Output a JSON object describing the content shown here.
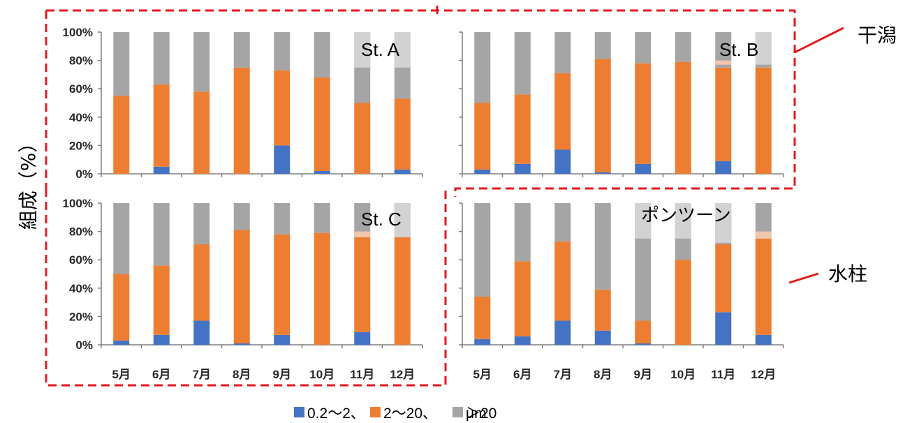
{
  "ylabel": "組成（%）",
  "legend_text": "0.2～2、 2～20、 ＞20 μm",
  "side_labels": {
    "upper": "干潟",
    "lower": "水柱"
  },
  "colors": {
    "small": "#4472c4",
    "medium": "#ed7d31",
    "large": "#a5a5a5",
    "light_orange": "#f8cbad",
    "light_gray": "#d9d9d9",
    "dashed": "#e31a1c",
    "axis": "#7f7f7f"
  },
  "chart_data": [
    {
      "type": "bar",
      "title": "St. A",
      "categories": [
        "5月",
        "6月",
        "7月",
        "8月",
        "9月",
        "10月",
        "11月",
        "12月"
      ],
      "series": [
        {
          "name": "0.2～2",
          "values": [
            0,
            5,
            0,
            0,
            20,
            2,
            0,
            3
          ]
        },
        {
          "name": "2～20",
          "values": [
            55,
            58,
            58,
            75,
            53,
            66,
            50,
            50
          ]
        },
        {
          "name": "＞20 μm",
          "values": [
            45,
            37,
            42,
            25,
            27,
            32,
            50,
            47
          ]
        }
      ],
      "ylim": [
        0,
        100
      ],
      "yticks": [
        "0%",
        "20%",
        "40%",
        "60%",
        "80%",
        "100%"
      ]
    },
    {
      "type": "bar",
      "title": "St. B",
      "categories": [
        "5月",
        "6月",
        "7月",
        "8月",
        "9月",
        "10月",
        "11月",
        "12月"
      ],
      "series": [
        {
          "name": "0.2～2",
          "values": [
            3,
            7,
            17,
            1,
            7,
            0,
            9,
            0
          ]
        },
        {
          "name": "2～20",
          "values": [
            47,
            49,
            54,
            80,
            71,
            79,
            66,
            75
          ]
        },
        {
          "name": "＞20 μm",
          "values": [
            50,
            44,
            29,
            19,
            22,
            21,
            25,
            25
          ]
        }
      ],
      "ylim": [
        0,
        100
      ],
      "yticks": [
        "0%",
        "20%",
        "40%",
        "60%",
        "80%",
        "100%"
      ]
    },
    {
      "type": "bar",
      "title": "St. C",
      "categories": [
        "5月",
        "6月",
        "7月",
        "8月",
        "9月",
        "10月",
        "11月",
        "12月"
      ],
      "series": [
        {
          "name": "0.2～2",
          "values": [
            3,
            7,
            17,
            1,
            7,
            0,
            9,
            0
          ]
        },
        {
          "name": "2～20",
          "values": [
            47,
            49,
            54,
            80,
            71,
            79,
            67,
            76
          ]
        },
        {
          "name": "＞20 μm",
          "values": [
            50,
            44,
            29,
            19,
            22,
            21,
            24,
            24
          ]
        }
      ],
      "ylim": [
        0,
        100
      ],
      "yticks": [
        "0%",
        "20%",
        "40%",
        "60%",
        "80%",
        "100%"
      ]
    },
    {
      "type": "bar",
      "title": "ポンツーン",
      "categories": [
        "5月",
        "6月",
        "7月",
        "8月",
        "9月",
        "10月",
        "11月",
        "12月"
      ],
      "series": [
        {
          "name": "0.2～2",
          "values": [
            4,
            6,
            17,
            10,
            1,
            0,
            23,
            7
          ]
        },
        {
          "name": "2～20",
          "values": [
            30,
            53,
            56,
            29,
            16,
            60,
            48,
            68
          ]
        },
        {
          "name": "＞20 μm",
          "values": [
            66,
            41,
            27,
            61,
            83,
            40,
            29,
            25
          ]
        }
      ],
      "ylim": [
        0,
        100
      ],
      "yticks": [
        "0%",
        "20%",
        "40%",
        "60%",
        "80%",
        "100%"
      ]
    }
  ]
}
